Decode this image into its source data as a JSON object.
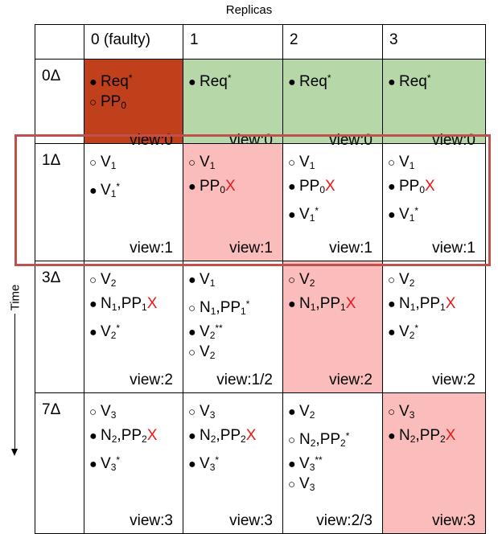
{
  "header_label": "Replicas",
  "time_label": "Time",
  "columns": [
    "0 (faulty)",
    "1",
    "2",
    "3"
  ],
  "colors": {
    "faulty": "#c1401c",
    "agreed": "#b6d7a8",
    "blocked": "#fbbcbc",
    "highlight_border": "#c0504d",
    "x_mark": "#e8191a"
  },
  "rows": [
    {
      "label": "0Δ",
      "cells": [
        {
          "bg": "faulty",
          "view": "view:0",
          "entries": [
            {
              "marker": "filled",
              "text": "Req",
              "sup": "*"
            },
            {
              "marker": "open",
              "text": "PP",
              "sub": "0"
            }
          ]
        },
        {
          "bg": "green",
          "view": "view:0",
          "entries": [
            {
              "marker": "filled",
              "text": "Req",
              "sup": "*"
            }
          ]
        },
        {
          "bg": "green",
          "view": "view:0",
          "entries": [
            {
              "marker": "filled",
              "text": "Req",
              "sup": "*"
            }
          ]
        },
        {
          "bg": "green",
          "view": "view:0",
          "entries": [
            {
              "marker": "filled",
              "text": "Req",
              "sup": "*"
            }
          ]
        }
      ]
    },
    {
      "label": "1Δ",
      "cells": [
        {
          "bg": "white",
          "view": "view:1",
          "entries": [
            {
              "marker": "open",
              "text": "V",
              "sub": "1"
            },
            {
              "marker": "filled",
              "text": "V",
              "sub": "1",
              "sup": "*"
            }
          ]
        },
        {
          "bg": "pink",
          "view": "view:1",
          "entries": [
            {
              "marker": "open",
              "text": "V",
              "sub": "1"
            },
            {
              "marker": "filled",
              "text": "PP",
              "sub": "0",
              "x": "X"
            }
          ]
        },
        {
          "bg": "white",
          "view": "view:1",
          "entries": [
            {
              "marker": "open",
              "text": "V",
              "sub": "1"
            },
            {
              "marker": "filled",
              "text": "PP",
              "sub": "0",
              "x": "X"
            },
            {
              "marker": "filled",
              "text": "V",
              "sub": "1",
              "sup": "*"
            }
          ]
        },
        {
          "bg": "white",
          "view": "view:1",
          "entries": [
            {
              "marker": "open",
              "text": "V",
              "sub": "1"
            },
            {
              "marker": "filled",
              "text": "PP",
              "sub": "0",
              "x": "X"
            },
            {
              "marker": "filled",
              "text": "V",
              "sub": "1",
              "sup": "*"
            }
          ]
        }
      ]
    },
    {
      "label": "3Δ",
      "cells": [
        {
          "bg": "white",
          "view": "view:2",
          "entries": [
            {
              "marker": "open",
              "text": "V",
              "sub": "2"
            },
            {
              "marker": "filled",
              "text": "N",
              "sub": "1",
              "text2": ",PP",
              "sub2": "1",
              "x": "X"
            },
            {
              "marker": "filled",
              "text": "V",
              "sub": "2",
              "sup": "*"
            }
          ]
        },
        {
          "bg": "white",
          "view": "view:1/2",
          "entries": [
            {
              "marker": "filled",
              "text": "V",
              "sub": "1"
            },
            {
              "marker": "open",
              "text": "N",
              "sub": "1",
              "text2": ",PP",
              "sub2": "1",
              "sup": "*"
            },
            {
              "marker": "filled",
              "text": "V",
              "sub": "2",
              "sup": "**"
            },
            {
              "marker": "open",
              "text": "V",
              "sub": "2"
            }
          ]
        },
        {
          "bg": "pink",
          "view": "view:2",
          "entries": [
            {
              "marker": "open",
              "text": "V",
              "sub": "2"
            },
            {
              "marker": "filled",
              "text": "N",
              "sub": "1",
              "text2": ",PP",
              "sub2": "1",
              "x": "X"
            }
          ]
        },
        {
          "bg": "white",
          "view": "view:2",
          "entries": [
            {
              "marker": "open",
              "text": "V",
              "sub": "2"
            },
            {
              "marker": "filled",
              "text": "N",
              "sub": "1",
              "text2": ",PP",
              "sub2": "1",
              "x": "X"
            },
            {
              "marker": "filled",
              "text": "V",
              "sub": "2",
              "sup": "*"
            }
          ]
        }
      ]
    },
    {
      "label": "7Δ",
      "cells": [
        {
          "bg": "white",
          "view": "view:3",
          "entries": [
            {
              "marker": "open",
              "text": "V",
              "sub": "3"
            },
            {
              "marker": "filled",
              "text": "N",
              "sub": "2",
              "text2": ",PP",
              "sub2": "2",
              "x": "X"
            },
            {
              "marker": "filled",
              "text": "V",
              "sub": "3",
              "sup": "*"
            }
          ]
        },
        {
          "bg": "white",
          "view": "view:3",
          "entries": [
            {
              "marker": "open",
              "text": "V",
              "sub": "3"
            },
            {
              "marker": "filled",
              "text": "N",
              "sub": "2",
              "text2": ",PP",
              "sub2": "2",
              "x": "X"
            },
            {
              "marker": "filled",
              "text": "V",
              "sub": "3",
              "sup": "*"
            }
          ]
        },
        {
          "bg": "white",
          "view": "view:2/3",
          "entries": [
            {
              "marker": "filled",
              "text": "V",
              "sub": "2"
            },
            {
              "marker": "open",
              "text": "N",
              "sub": "2",
              "text2": ",PP",
              "sub2": "2",
              "sup": "*"
            },
            {
              "marker": "filled",
              "text": "V",
              "sub": "3",
              "sup": "**"
            },
            {
              "marker": "open",
              "text": "V",
              "sub": "3"
            }
          ]
        },
        {
          "bg": "pink",
          "view": "view:3",
          "entries": [
            {
              "marker": "open",
              "text": "V",
              "sub": "3"
            },
            {
              "marker": "filled",
              "text": "N",
              "sub": "2",
              "text2": ",PP",
              "sub2": "2",
              "x": "X"
            }
          ]
        }
      ]
    }
  ]
}
